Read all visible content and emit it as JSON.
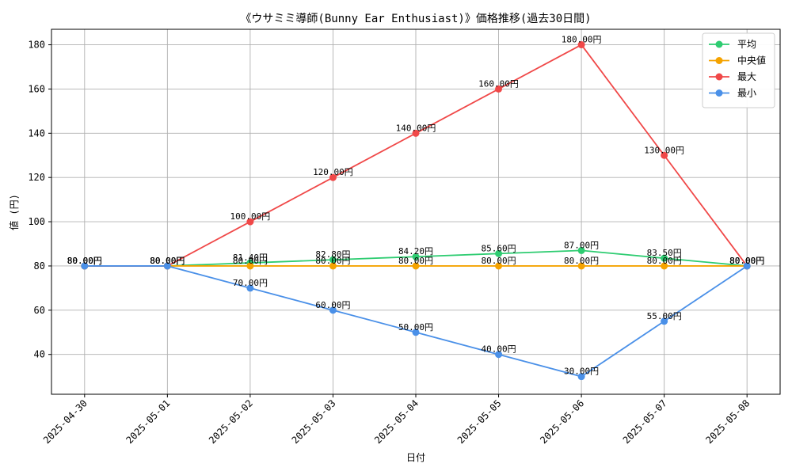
{
  "chart_data": {
    "type": "line",
    "title": "《ウサミミ導師(Bunny Ear Enthusiast)》価格推移(過去30日間)",
    "xlabel": "日付",
    "ylabel": "値 (円)",
    "categories": [
      "2025-04-30",
      "2025-05-01",
      "2025-05-02",
      "2025-05-03",
      "2025-05-04",
      "2025-05-05",
      "2025-05-06",
      "2025-05-07",
      "2025-05-08"
    ],
    "ylim": [
      22,
      187
    ],
    "yticks": [
      40,
      60,
      80,
      100,
      120,
      140,
      160,
      180
    ],
    "grid": true,
    "legend_position": "top-right",
    "series": [
      {
        "name": "平均",
        "color": "#2ecc71",
        "values": [
          80,
          80,
          81.4,
          82.8,
          84.2,
          85.6,
          87.0,
          83.5,
          80
        ],
        "labels": [
          "80.00円",
          "80.00円",
          "81.40円",
          "82.80円",
          "84.20円",
          "85.60円",
          "87.00円",
          "83.50円",
          "80.00円"
        ]
      },
      {
        "name": "中央値",
        "color": "#f5a300",
        "values": [
          80,
          80,
          80,
          80,
          80,
          80,
          80,
          80,
          80
        ],
        "labels": [
          "80.00円",
          "80.00円",
          "80.00円",
          "80.00円",
          "80.00円",
          "80.00円",
          "80.00円",
          "80.00円",
          "80.00円"
        ]
      },
      {
        "name": "最大",
        "color": "#f04848",
        "values": [
          80,
          80,
          100,
          120,
          140,
          160,
          180,
          130,
          80
        ],
        "labels": [
          "80.00円",
          "80.00円",
          "100.00円",
          "120.00円",
          "140.00円",
          "160.00円",
          "180.00円",
          "130.00円",
          "80.00円"
        ]
      },
      {
        "name": "最小",
        "color": "#4a90e8",
        "values": [
          80,
          80,
          70,
          60,
          50,
          40,
          30,
          55,
          80
        ],
        "labels": [
          "80.00円",
          "80.00円",
          "70.00円",
          "60.00円",
          "50.00円",
          "40.00円",
          "30.00円",
          "55.00円",
          "80.00円"
        ]
      }
    ]
  }
}
